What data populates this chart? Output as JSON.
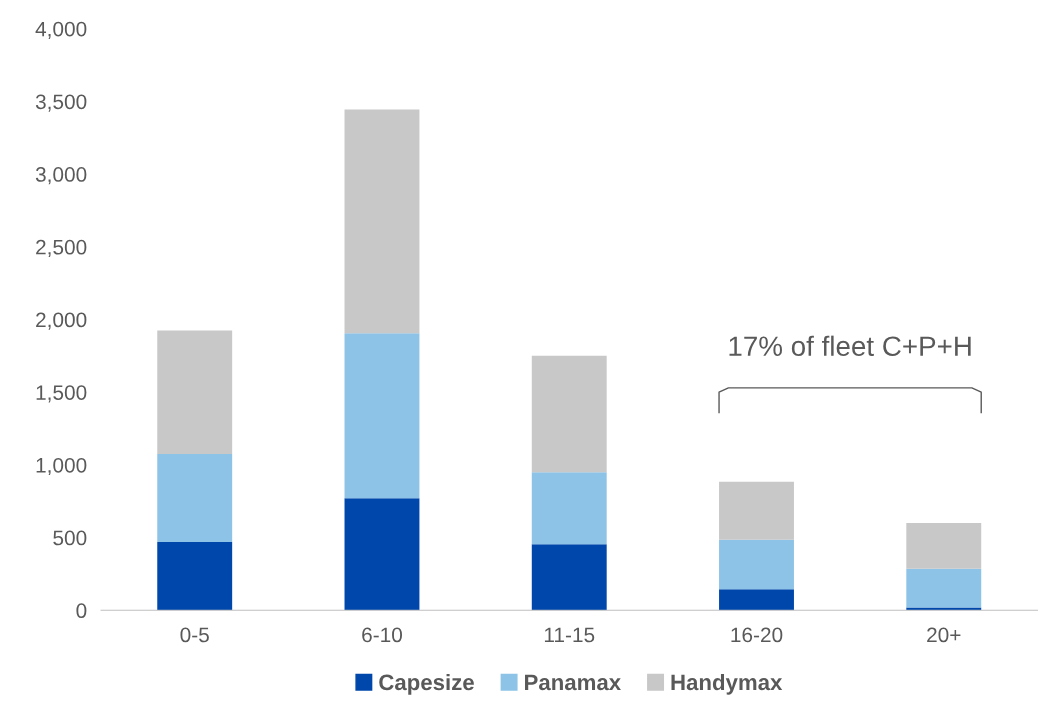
{
  "chart_data": {
    "type": "bar",
    "stacked": true,
    "categories": [
      "0-5",
      "6-10",
      "11-15",
      "16-20",
      "20+"
    ],
    "series": [
      {
        "name": "Capesize",
        "color": "#0047ab",
        "values": [
          470,
          770,
          455,
          145,
          20
        ]
      },
      {
        "name": "Panamax",
        "color": "#8dc3e6",
        "values": [
          605,
          1135,
          495,
          340,
          265
        ]
      },
      {
        "name": "Handymax",
        "color": "#c8c8c8",
        "values": [
          850,
          1540,
          800,
          400,
          315
        ]
      }
    ],
    "ylim": [
      0,
      4000
    ],
    "yticks": [
      {
        "value": 0,
        "label": "0"
      },
      {
        "value": 500,
        "label": "500"
      },
      {
        "value": 1000,
        "label": "1,000"
      },
      {
        "value": 1500,
        "label": "1,500"
      },
      {
        "value": 2000,
        "label": "2,000"
      },
      {
        "value": 2500,
        "label": "2,500"
      },
      {
        "value": 3000,
        "label": "3,000"
      },
      {
        "value": 3500,
        "label": "3,500"
      },
      {
        "value": 4000,
        "label": "4,000"
      }
    ],
    "annotations": [
      "17% of fleet C+P+H"
    ],
    "grid": false,
    "legend": "bottom"
  }
}
